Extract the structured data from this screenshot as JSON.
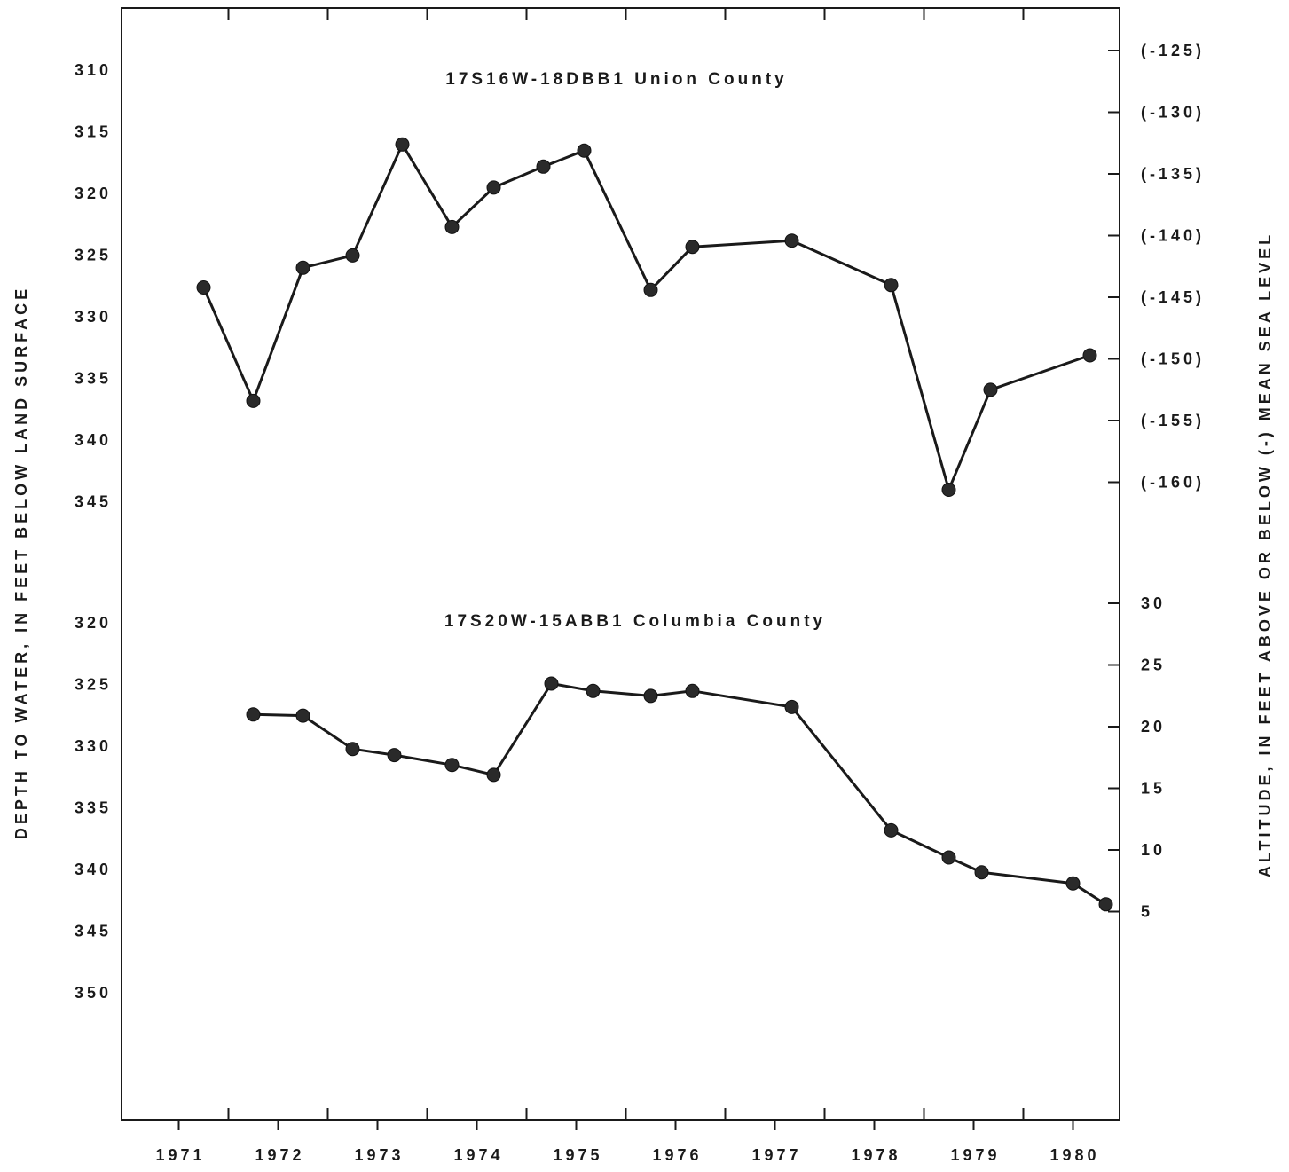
{
  "chart_data": {
    "type": "line",
    "x_axis": {
      "year_labels": [
        "1971",
        "1972",
        "1973",
        "1974",
        "1975",
        "1976",
        "1977",
        "1978",
        "1979",
        "1980"
      ]
    },
    "left_axis_title": "DEPTH TO WATER, IN FEET BELOW LAND SURFACE",
    "right_axis_title": "ALTITUDE, IN FEET ABOVE OR BELOW (-) MEAN SEA LEVEL",
    "colors": {
      "line": "#1a1a1a",
      "point": "#2a2a2a"
    },
    "panels": [
      {
        "id": "union",
        "title": "17S16W-18DBB1 Union County",
        "depth_ticks": [
          "310",
          "315",
          "320",
          "325",
          "330",
          "335",
          "340",
          "345"
        ],
        "depth_range": [
          310,
          345
        ],
        "altitude_ticks": [
          "(-125)",
          "(-130)",
          "(-135)",
          "(-140)",
          "(-145)",
          "(-150)",
          "(-155)",
          "(-160)"
        ],
        "series": [
          {
            "x": 1970.75,
            "depth": 327.7
          },
          {
            "x": 1971.25,
            "depth": 336.9
          },
          {
            "x": 1971.75,
            "depth": 326.1
          },
          {
            "x": 1972.25,
            "depth": 325.1
          },
          {
            "x": 1972.75,
            "depth": 316.1
          },
          {
            "x": 1973.25,
            "depth": 322.8
          },
          {
            "x": 1973.67,
            "depth": 319.6
          },
          {
            "x": 1974.17,
            "depth": 317.9
          },
          {
            "x": 1974.58,
            "depth": 316.6
          },
          {
            "x": 1975.25,
            "depth": 327.9
          },
          {
            "x": 1975.67,
            "depth": 324.4
          },
          {
            "x": 1976.67,
            "depth": 323.9
          },
          {
            "x": 1977.67,
            "depth": 327.5
          },
          {
            "x": 1978.25,
            "depth": 344.1
          },
          {
            "x": 1978.67,
            "depth": 336.0
          },
          {
            "x": 1979.67,
            "depth": 333.2
          }
        ]
      },
      {
        "id": "columbia",
        "title": "17S20W-15ABB1 Columbia County",
        "depth_ticks": [
          "320",
          "325",
          "330",
          "335",
          "340",
          "345",
          "350"
        ],
        "depth_range": [
          320,
          350
        ],
        "altitude_ticks": [
          "30",
          "25",
          "20",
          "15",
          "10",
          "5"
        ],
        "series": [
          {
            "x": 1971.25,
            "depth": 327.5
          },
          {
            "x": 1971.75,
            "depth": 327.6
          },
          {
            "x": 1972.25,
            "depth": 330.3
          },
          {
            "x": 1972.67,
            "depth": 330.8
          },
          {
            "x": 1973.25,
            "depth": 331.6
          },
          {
            "x": 1973.67,
            "depth": 332.4
          },
          {
            "x": 1974.25,
            "depth": 325.0
          },
          {
            "x": 1974.67,
            "depth": 325.6
          },
          {
            "x": 1975.25,
            "depth": 326.0
          },
          {
            "x": 1975.67,
            "depth": 325.6
          },
          {
            "x": 1976.67,
            "depth": 326.9
          },
          {
            "x": 1977.67,
            "depth": 336.9
          },
          {
            "x": 1978.25,
            "depth": 339.1
          },
          {
            "x": 1978.58,
            "depth": 340.3
          },
          {
            "x": 1979.5,
            "depth": 341.2
          },
          {
            "x": 1979.83,
            "depth": 342.9
          }
        ]
      }
    ]
  }
}
